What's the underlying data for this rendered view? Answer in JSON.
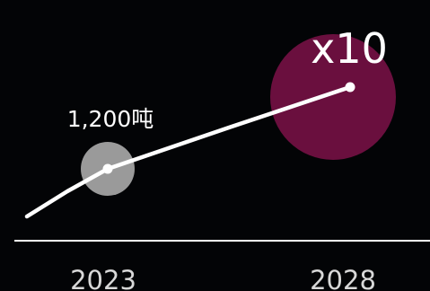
{
  "chart_data": {
    "type": "line",
    "categories": [
      "2023",
      "2028"
    ],
    "series": [
      {
        "values": [
          1200,
          12000
        ]
      }
    ],
    "annotations": {
      "start_label": "1,200吨",
      "end_label": "x10"
    },
    "grid": false,
    "legend": "none",
    "colors": {
      "background": "#030406",
      "line": "#ffffff",
      "start_bubble": "#9a9a9a",
      "end_bubble": "#6a0f3e",
      "axis": "#ffffff",
      "tick_text": "#d8d8d8"
    }
  }
}
